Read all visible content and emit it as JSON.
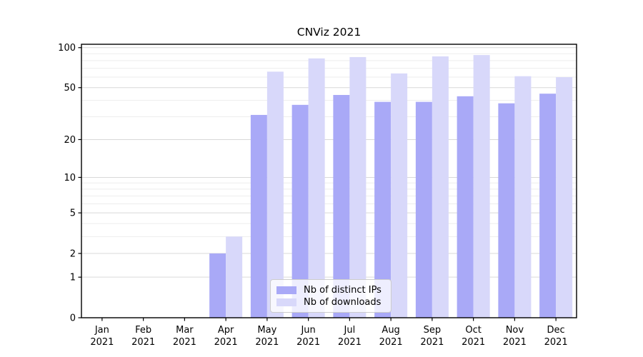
{
  "chart_data": {
    "type": "bar",
    "title": "CNViz 2021",
    "categories": [
      "Jan",
      "Feb",
      "Mar",
      "Apr",
      "May",
      "Jun",
      "Jul",
      "Aug",
      "Sep",
      "Oct",
      "Nov",
      "Dec"
    ],
    "year_label": "2021",
    "series": [
      {
        "name": "Nb of distinct IPs",
        "color": "#a9a9f7",
        "values": [
          0,
          0,
          0,
          2,
          31,
          37,
          44,
          39,
          39,
          43,
          38,
          45
        ]
      },
      {
        "name": "Nb of downloads",
        "color": "#d8d8fa",
        "values": [
          0,
          0,
          0,
          3,
          66,
          83,
          85,
          64,
          86,
          88,
          61,
          60
        ]
      }
    ],
    "y_scale": "log1p",
    "ylim": [
      0,
      106
    ],
    "y_ticks": [
      0,
      1,
      2,
      5,
      10,
      20,
      50,
      100
    ],
    "y_minor_ticks": [
      3,
      4,
      6,
      7,
      8,
      9,
      30,
      40,
      60,
      70,
      80,
      90
    ],
    "grid": "horizontal-only",
    "legend_position": "inside lower-center",
    "colors": {
      "grid_major": "#d9d9d9",
      "grid_minor": "#ededed",
      "axis": "#000000",
      "background": "#ffffff"
    }
  }
}
